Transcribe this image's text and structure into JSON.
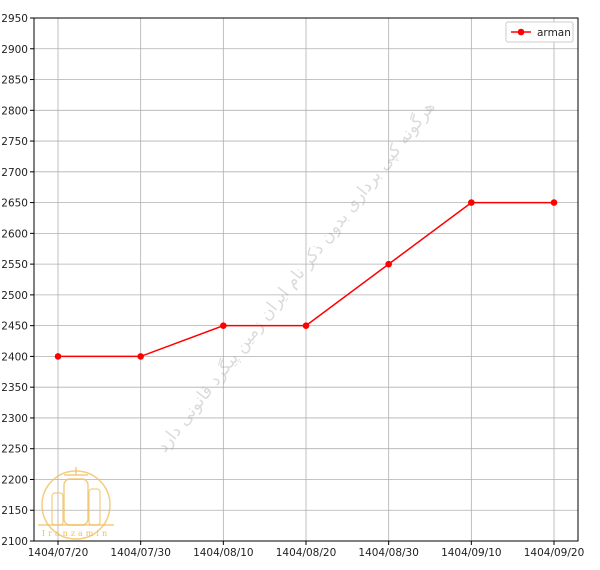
{
  "chart_data": {
    "type": "line",
    "categories": [
      "1404/07/20",
      "1404/07/30",
      "1404/08/10",
      "1404/08/20",
      "1404/08/30",
      "1404/09/10",
      "1404/09/20"
    ],
    "series": [
      {
        "name": "arman",
        "values": [
          2400,
          2400,
          2450,
          2450,
          2550,
          2650,
          2650
        ],
        "color": "#ff0000",
        "marker": "circle"
      }
    ],
    "title": "",
    "xlabel": "",
    "ylabel": "",
    "ylim": [
      2100,
      2950
    ],
    "yticks": [
      2100,
      2150,
      2200,
      2250,
      2300,
      2350,
      2400,
      2450,
      2500,
      2550,
      2600,
      2650,
      2700,
      2750,
      2800,
      2850,
      2900,
      2950
    ],
    "grid": true,
    "legend": "top-right"
  },
  "watermark": {
    "text": "هرگونه کپی برداری بدون ذکر نام ایران زمین پیگرد قانونی دارد",
    "logo_text": "Iranzamin",
    "color": "#f0c060"
  }
}
